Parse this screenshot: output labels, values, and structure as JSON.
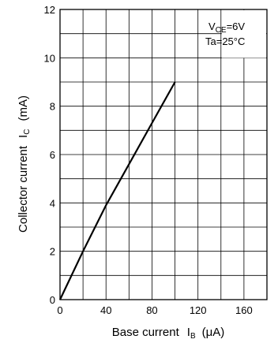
{
  "chart_data": {
    "type": "line",
    "xlabel": {
      "text": "Base current",
      "symbol": "I",
      "sub": "B",
      "unit": "(μA)"
    },
    "ylabel": {
      "text": "Collector current",
      "symbol": "I",
      "sub": "C",
      "unit": "(mA)"
    },
    "xlim": [
      0,
      180
    ],
    "ylim": [
      0,
      12
    ],
    "x_ticks": [
      0,
      40,
      80,
      120,
      160
    ],
    "y_ticks": [
      0,
      2,
      4,
      6,
      8,
      10,
      12
    ],
    "x_grid_step": 20,
    "y_grid_step": 1,
    "grid": true,
    "conditions": [
      {
        "symbol": "V",
        "sub": "CE",
        "rest": "=6V"
      },
      {
        "symbol": "Ta=25°C",
        "sub": "",
        "rest": ""
      }
    ],
    "series": [
      {
        "x": [
          0,
          20,
          40,
          60,
          80,
          100
        ],
        "y": [
          0,
          2.0,
          3.9,
          5.6,
          7.3,
          9.0
        ]
      }
    ]
  }
}
